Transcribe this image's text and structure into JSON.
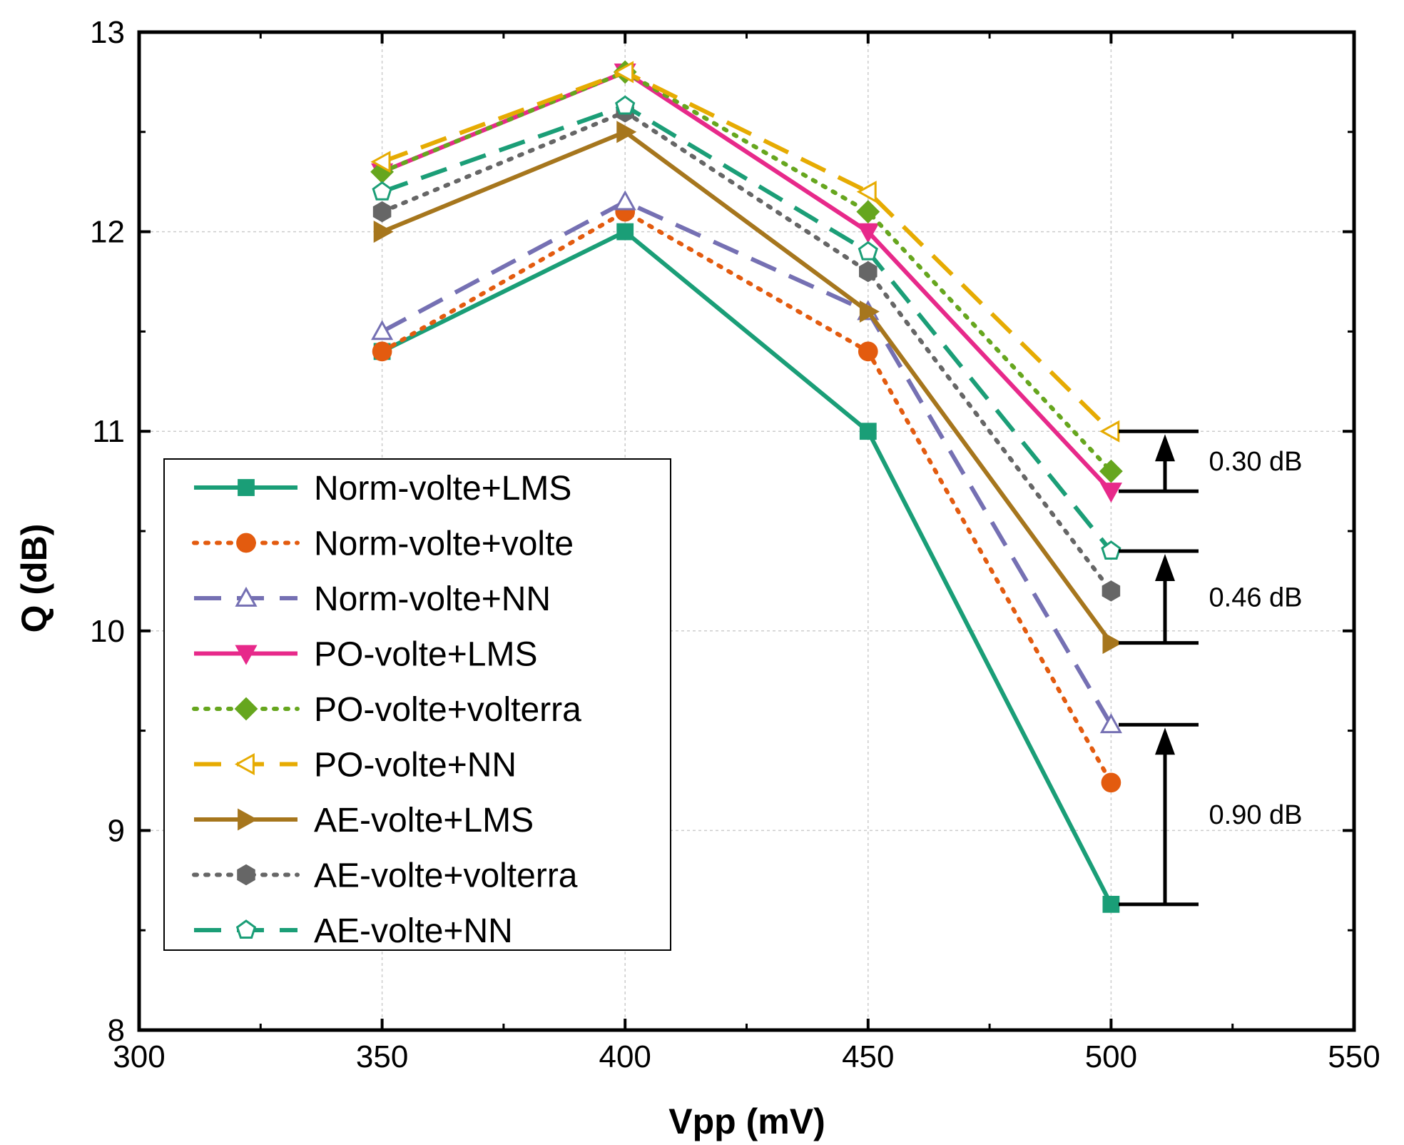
{
  "chart_data": {
    "type": "line",
    "title": "",
    "xlabel": "Vpp (mV)",
    "ylabel": "Q (dB)",
    "xlim": [
      300,
      550
    ],
    "ylim": [
      8,
      13
    ],
    "xticks": [
      300,
      350,
      400,
      450,
      500,
      550
    ],
    "yticks": [
      8,
      9,
      10,
      11,
      12,
      13
    ],
    "grid": true,
    "legend_position": "bottom-left",
    "x": [
      350,
      400,
      450,
      500
    ],
    "series": [
      {
        "name": "Norm-volte+LMS",
        "values": [
          11.4,
          12.0,
          11.0,
          8.63
        ],
        "color": "#1a9e77",
        "dash": "solid",
        "marker": "square",
        "filled": true
      },
      {
        "name": "Norm-volte+volte",
        "values": [
          11.4,
          12.1,
          11.4,
          9.24
        ],
        "color": "#e35b0f",
        "dash": "dot",
        "marker": "circle",
        "filled": true
      },
      {
        "name": "Norm-volte+NN",
        "values": [
          11.5,
          12.15,
          11.6,
          9.53
        ],
        "color": "#7570b3",
        "dash": "dash",
        "marker": "triangle-up",
        "filled": false
      },
      {
        "name": "PO-volte+LMS",
        "values": [
          12.3,
          12.8,
          12.0,
          10.7
        ],
        "color": "#e7298a",
        "dash": "solid",
        "marker": "triangle-down",
        "filled": true
      },
      {
        "name": "PO-volte+volterra",
        "values": [
          12.3,
          12.8,
          12.1,
          10.8
        ],
        "color": "#66a61e",
        "dash": "dot",
        "marker": "diamond",
        "filled": true
      },
      {
        "name": "PO-volte+NN",
        "values": [
          12.35,
          12.8,
          12.2,
          11.0
        ],
        "color": "#e6ab02",
        "dash": "dash",
        "marker": "triangle-left",
        "filled": false
      },
      {
        "name": "AE-volte+LMS",
        "values": [
          12.0,
          12.5,
          11.6,
          9.94
        ],
        "color": "#a6761d",
        "dash": "solid",
        "marker": "triangle-right",
        "filled": true
      },
      {
        "name": "AE-volte+volterra",
        "values": [
          12.1,
          12.6,
          11.8,
          10.2
        ],
        "color": "#666666",
        "dash": "dot",
        "marker": "hexagon",
        "filled": true
      },
      {
        "name": "AE-volte+NN",
        "values": [
          12.2,
          12.63,
          11.9,
          10.4
        ],
        "color": "#1b9e77",
        "dash": "dash",
        "marker": "pentagon",
        "filled": false
      }
    ],
    "annotations": [
      {
        "label": "0.30 dB",
        "from": 10.7,
        "to": 11.0
      },
      {
        "label": "0.46 dB",
        "from": 9.94,
        "to": 10.4
      },
      {
        "label": "0.90 dB",
        "from": 8.63,
        "to": 9.53
      }
    ]
  }
}
